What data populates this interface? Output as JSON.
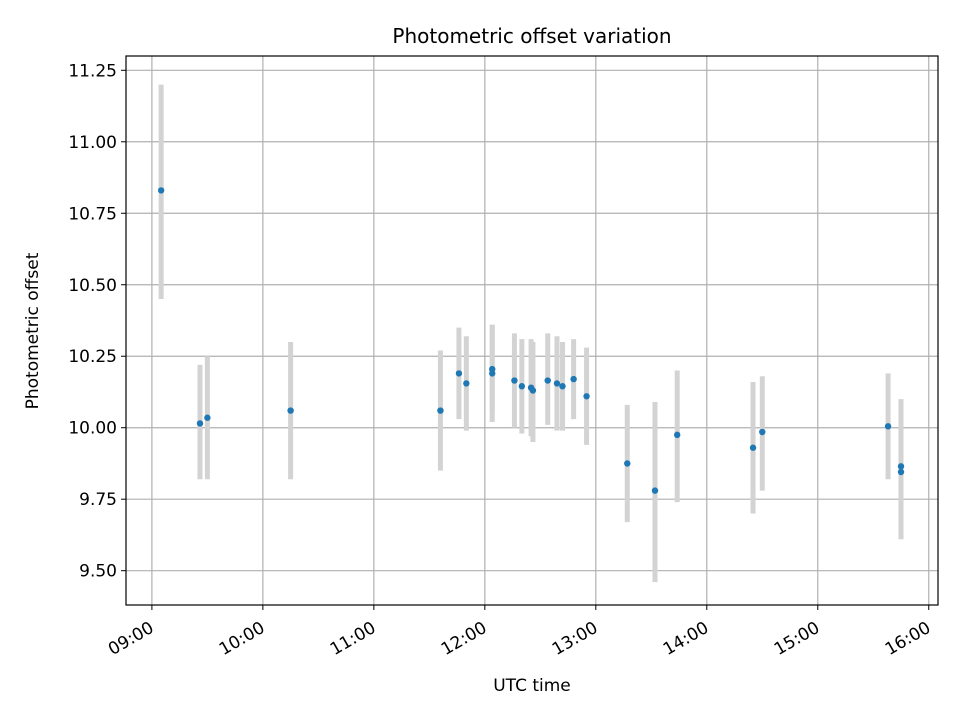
{
  "chart_data": {
    "type": "scatter",
    "title": "Photometric offset variation",
    "xlabel": "UTC time",
    "ylabel": "Photometric offset",
    "grid": true,
    "colors": {
      "point": "#1f77b4",
      "errorbar": "#d3d3d3",
      "grid": "#b0b0b0"
    },
    "x_ticks": [
      "09:00",
      "10:00",
      "11:00",
      "12:00",
      "13:00",
      "14:00",
      "15:00",
      "16:00"
    ],
    "y_ticks": [
      "9.50",
      "9.75",
      "10.00",
      "10.25",
      "10.50",
      "10.75",
      "11.00",
      "11.25"
    ],
    "xlim": [
      "08:46",
      "16:05"
    ],
    "ylim": [
      9.38,
      11.3
    ],
    "points": [
      {
        "x": "09:05",
        "y": 10.83,
        "err_low": 10.45,
        "err_high": 11.2
      },
      {
        "x": "09:26",
        "y": 10.015,
        "err_low": 9.82,
        "err_high": 10.22
      },
      {
        "x": "09:30",
        "y": 10.035,
        "err_low": 9.82,
        "err_high": 10.25
      },
      {
        "x": "10:15",
        "y": 10.06,
        "err_low": 9.82,
        "err_high": 10.3
      },
      {
        "x": "11:36",
        "y": 10.06,
        "err_low": 9.85,
        "err_high": 10.27
      },
      {
        "x": "11:46",
        "y": 10.19,
        "err_low": 10.03,
        "err_high": 10.35
      },
      {
        "x": "11:50",
        "y": 10.155,
        "err_low": 9.99,
        "err_high": 10.32
      },
      {
        "x": "12:04",
        "y": 10.19,
        "err_low": 10.02,
        "err_high": 10.36
      },
      {
        "x": "12:04",
        "y": 10.205,
        "err_low": 10.05,
        "err_high": 10.36
      },
      {
        "x": "12:16",
        "y": 10.165,
        "err_low": 10.0,
        "err_high": 10.33
      },
      {
        "x": "12:20",
        "y": 10.145,
        "err_low": 9.98,
        "err_high": 10.31
      },
      {
        "x": "12:25",
        "y": 10.14,
        "err_low": 9.97,
        "err_high": 10.31
      },
      {
        "x": "12:26",
        "y": 10.13,
        "err_low": 9.95,
        "err_high": 10.3
      },
      {
        "x": "12:34",
        "y": 10.165,
        "err_low": 10.01,
        "err_high": 10.33
      },
      {
        "x": "12:39",
        "y": 10.155,
        "err_low": 9.99,
        "err_high": 10.32
      },
      {
        "x": "12:42",
        "y": 10.145,
        "err_low": 9.99,
        "err_high": 10.3
      },
      {
        "x": "12:48",
        "y": 10.17,
        "err_low": 10.03,
        "err_high": 10.31
      },
      {
        "x": "12:55",
        "y": 10.11,
        "err_low": 9.94,
        "err_high": 10.28
      },
      {
        "x": "13:17",
        "y": 9.875,
        "err_low": 9.67,
        "err_high": 10.08
      },
      {
        "x": "13:32",
        "y": 9.78,
        "err_low": 9.46,
        "err_high": 10.09
      },
      {
        "x": "13:44",
        "y": 9.975,
        "err_low": 9.74,
        "err_high": 10.2
      },
      {
        "x": "14:25",
        "y": 9.93,
        "err_low": 9.7,
        "err_high": 10.16
      },
      {
        "x": "14:30",
        "y": 9.985,
        "err_low": 9.78,
        "err_high": 10.18
      },
      {
        "x": "15:38",
        "y": 10.005,
        "err_low": 9.82,
        "err_high": 10.19
      },
      {
        "x": "15:45",
        "y": 9.865,
        "err_low": 9.62,
        "err_high": 10.1
      },
      {
        "x": "15:45",
        "y": 9.845,
        "err_low": 9.61,
        "err_high": 10.08
      }
    ]
  }
}
